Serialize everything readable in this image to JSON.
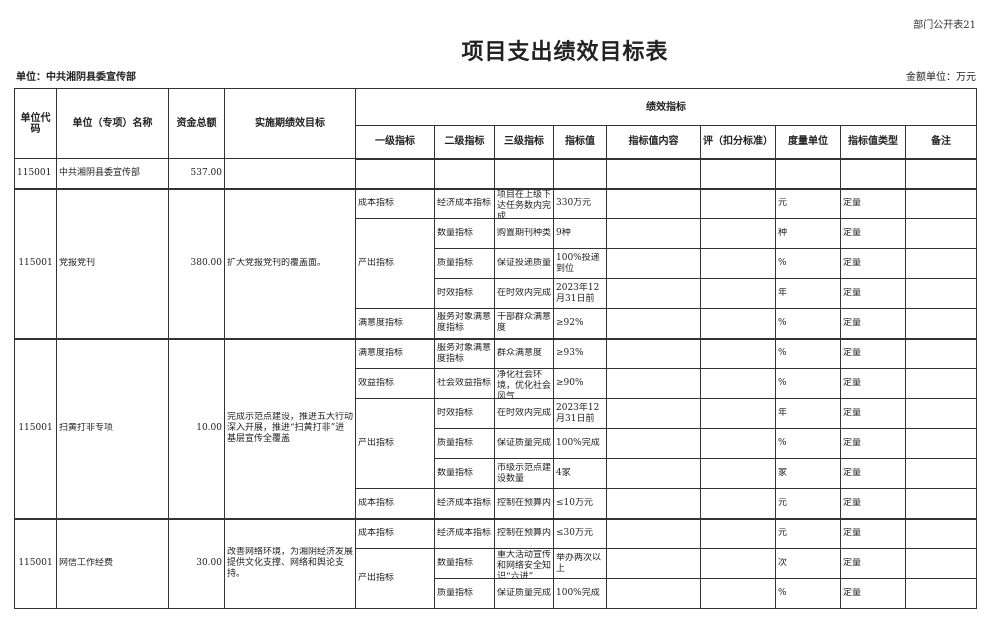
{
  "form_number": "部门公开表21",
  "title": "项目支出绩效目标表",
  "unit_label": "单位：中共湘阴县委宣传部",
  "amount_unit": "金额单位：万元",
  "headers": {
    "code": "单位代码",
    "name": "单位（专项）名称",
    "amount": "资金总额",
    "goal": "实施期绩效目标",
    "indicators": "绩效指标",
    "level1": "一级指标",
    "level2": "二级指标",
    "level3": "三级指标",
    "value": "指标值",
    "content": "指标值内容",
    "score": "评（扣分标准）",
    "unit": "度量单位",
    "type": "指标值类型",
    "note": "备注"
  },
  "summary": {
    "code": "115001",
    "name": "中共湘阴县委宣传部",
    "amount": "537.00"
  },
  "projects": [
    {
      "code": "115001",
      "name": "党报党刊",
      "amount": "380.00",
      "goal": "扩大党报党刊的覆盖面。",
      "groups": [
        {
          "level1": "成本指标",
          "items": [
            {
              "level2": "经济成本指标",
              "level3": "项目在上级下达任务数内完成",
              "value": "330万元",
              "unit": "元",
              "type": "定量"
            }
          ]
        },
        {
          "level1": "产出指标",
          "items": [
            {
              "level2": "数量指标",
              "level3": "购置期刊种类",
              "value": "9种",
              "unit": "种",
              "type": "定量"
            },
            {
              "level2": "质量指标",
              "level3": "保证投递质量",
              "value": "100%投递到位",
              "unit": "%",
              "type": "定量"
            },
            {
              "level2": "时效指标",
              "level3": "在时效内完成",
              "value": "2023年12月31日前",
              "unit": "年",
              "type": "定量"
            }
          ]
        },
        {
          "level1": "满意度指标",
          "items": [
            {
              "level2": "服务对象满意度指标",
              "level3": "干部群众满意度",
              "value": "≥92%",
              "unit": "%",
              "type": "定量"
            }
          ]
        }
      ]
    },
    {
      "code": "115001",
      "name": "扫黄打非专项",
      "amount": "10.00",
      "goal": "完成示范点建设，推进五大行动深入开展，推进“扫黄打非”进基层宣传全覆盖",
      "groups": [
        {
          "level1": "满意度指标",
          "items": [
            {
              "level2": "服务对象满意度指标",
              "level3": "群众满意度",
              "value": "≥93%",
              "unit": "%",
              "type": "定量"
            }
          ]
        },
        {
          "level1": "效益指标",
          "items": [
            {
              "level2": "社会效益指标",
              "level3": "净化社会环境，优化社会风气",
              "value": "≥90%",
              "unit": "%",
              "type": "定量"
            }
          ]
        },
        {
          "level1": "产出指标",
          "items": [
            {
              "level2": "时效指标",
              "level3": "在时效内完成",
              "value": "2023年12月31日前",
              "unit": "年",
              "type": "定量"
            },
            {
              "level2": "质量指标",
              "level3": "保证质量完成",
              "value": "100%完成",
              "unit": "%",
              "type": "定量"
            },
            {
              "level2": "数量指标",
              "level3": "市级示范点建设数量",
              "value": "4家",
              "unit": "家",
              "type": "定量"
            }
          ]
        },
        {
          "level1": "成本指标",
          "items": [
            {
              "level2": "经济成本指标",
              "level3": "控制在预算内",
              "value": "≤10万元",
              "unit": "元",
              "type": "定量"
            }
          ]
        }
      ]
    },
    {
      "code": "115001",
      "name": "网信工作经费",
      "amount": "30.00",
      "goal": "改善网络环境，为湘阴经济发展提供文化支撑、网络和舆论支持。",
      "groups": [
        {
          "level1": "成本指标",
          "items": [
            {
              "level2": "经济成本指标",
              "level3": "控制在预算内",
              "value": "≤30万元",
              "unit": "元",
              "type": "定量"
            }
          ]
        },
        {
          "level1": "产出指标",
          "items": [
            {
              "level2": "数量指标",
              "level3": "重大活动宣传和网络安全知识“六进”",
              "value": "举办两次以上",
              "unit": "次",
              "type": "定量"
            },
            {
              "level2": "质量指标",
              "level3": "保证质量完成",
              "value": "100%完成",
              "unit": "%",
              "type": "定量"
            }
          ]
        }
      ]
    }
  ]
}
